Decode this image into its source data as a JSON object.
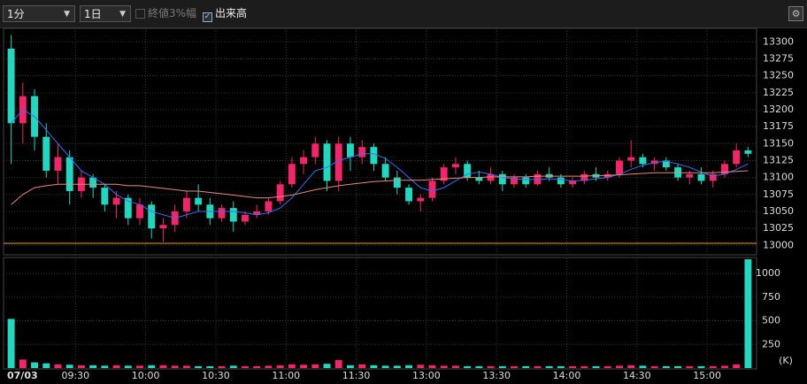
{
  "toolbar": {
    "interval": "1分",
    "period": "1日",
    "option_range": "終値3%幅",
    "option_volume": "出来高"
  },
  "chart_data": {
    "type": "candlestick",
    "date": "07/03",
    "sessions": [
      [
        "09:00",
        "11:30"
      ],
      [
        "12:30",
        "15:20"
      ]
    ],
    "x": [
      "09:00",
      "09:05",
      "09:10",
      "09:15",
      "09:20",
      "09:25",
      "09:30",
      "09:35",
      "09:40",
      "09:45",
      "09:50",
      "09:55",
      "10:00",
      "10:05",
      "10:10",
      "10:15",
      "10:20",
      "10:25",
      "10:30",
      "10:35",
      "10:40",
      "10:45",
      "10:50",
      "10:55",
      "11:00",
      "11:05",
      "11:10",
      "11:15",
      "11:20",
      "11:25",
      "12:30",
      "12:35",
      "12:40",
      "12:45",
      "12:50",
      "12:55",
      "13:00",
      "13:05",
      "13:10",
      "13:15",
      "13:20",
      "13:25",
      "13:30",
      "13:35",
      "13:40",
      "13:45",
      "13:50",
      "13:55",
      "14:00",
      "14:05",
      "14:10",
      "14:15",
      "14:20",
      "14:25",
      "14:30",
      "14:35",
      "14:40",
      "14:45",
      "14:50",
      "14:55",
      "15:00",
      "15:05",
      "15:10",
      "15:15"
    ],
    "open": [
      13290,
      13180,
      13220,
      13160,
      13110,
      13130,
      13080,
      13100,
      13085,
      13060,
      13070,
      13040,
      13060,
      13025,
      13030,
      13050,
      13070,
      13060,
      13040,
      13055,
      13035,
      13045,
      13050,
      13065,
      13090,
      13120,
      13130,
      13150,
      13095,
      13150,
      13130,
      13145,
      13120,
      13100,
      13085,
      13065,
      13070,
      13095,
      13115,
      13120,
      13100,
      13095,
      13105,
      13090,
      13100,
      13090,
      13105,
      13100,
      13090,
      13095,
      13105,
      13100,
      13105,
      13125,
      13130,
      13120,
      13125,
      13115,
      13100,
      13105,
      13095,
      13105,
      13120,
      13140
    ],
    "high": [
      13310,
      13240,
      13230,
      13180,
      13150,
      13140,
      13110,
      13105,
      13090,
      13080,
      13075,
      13070,
      13065,
      13040,
      13060,
      13080,
      13090,
      13070,
      13060,
      13065,
      13050,
      13060,
      13070,
      13095,
      13130,
      13140,
      13160,
      13155,
      13160,
      13160,
      13155,
      13150,
      13130,
      13110,
      13090,
      13075,
      13100,
      13120,
      13130,
      13125,
      13110,
      13115,
      13110,
      13105,
      13105,
      13110,
      13115,
      13105,
      13100,
      13110,
      13115,
      13110,
      13130,
      13155,
      13135,
      13130,
      13130,
      13120,
      13110,
      13115,
      13110,
      13125,
      13150,
      13145
    ],
    "low": [
      13120,
      13150,
      13140,
      13100,
      13090,
      13060,
      13070,
      13070,
      13050,
      13040,
      13030,
      13030,
      13010,
      13005,
      13020,
      13040,
      13050,
      13030,
      13035,
      13020,
      13030,
      13040,
      13045,
      13060,
      13085,
      13105,
      13120,
      13080,
      13080,
      13110,
      13120,
      13110,
      13095,
      13075,
      13060,
      13050,
      13065,
      13090,
      13105,
      13095,
      13090,
      13090,
      13080,
      13085,
      13085,
      13088,
      13095,
      13085,
      13085,
      13090,
      13095,
      13095,
      13100,
      13115,
      13115,
      13110,
      13110,
      13095,
      13090,
      13090,
      13085,
      13100,
      13115,
      13130
    ],
    "close": [
      13180,
      13220,
      13160,
      13110,
      13130,
      13080,
      13100,
      13085,
      13060,
      13070,
      13040,
      13060,
      13025,
      13030,
      13050,
      13070,
      13060,
      13040,
      13055,
      13035,
      13045,
      13050,
      13065,
      13090,
      13120,
      13130,
      13150,
      13095,
      13150,
      13130,
      13145,
      13120,
      13100,
      13085,
      13065,
      13070,
      13095,
      13115,
      13120,
      13100,
      13095,
      13105,
      13090,
      13100,
      13090,
      13105,
      13100,
      13090,
      13095,
      13105,
      13100,
      13105,
      13125,
      13130,
      13120,
      13125,
      13115,
      13100,
      13105,
      13095,
      13105,
      13120,
      13140,
      13135
    ],
    "volume": [
      520,
      90,
      60,
      50,
      40,
      35,
      30,
      30,
      25,
      30,
      25,
      25,
      30,
      30,
      25,
      25,
      20,
      20,
      20,
      25,
      20,
      20,
      25,
      30,
      40,
      35,
      40,
      45,
      85,
      30,
      40,
      30,
      25,
      25,
      30,
      35,
      30,
      25,
      25,
      20,
      20,
      20,
      20,
      20,
      20,
      20,
      20,
      20,
      20,
      20,
      20,
      20,
      25,
      30,
      25,
      20,
      20,
      20,
      20,
      20,
      20,
      25,
      40,
      1150
    ],
    "up_color": "#f0266a",
    "down_color": "#22d6c0",
    "moving_averages": [
      {
        "color": "#3a6ff0",
        "values": [
          13180,
          13200,
          13190,
          13170,
          13150,
          13130,
          13110,
          13100,
          13090,
          13075,
          13065,
          13060,
          13050,
          13045,
          13040,
          13045,
          13050,
          13050,
          13050,
          13050,
          13048,
          13045,
          13048,
          13055,
          13070,
          13090,
          13110,
          13115,
          13125,
          13130,
          13135,
          13135,
          13128,
          13115,
          13100,
          13085,
          13080,
          13085,
          13095,
          13105,
          13108,
          13105,
          13100,
          13098,
          13097,
          13097,
          13098,
          13097,
          13095,
          13096,
          13098,
          13100,
          13105,
          13112,
          13118,
          13122,
          13124,
          13120,
          13115,
          13108,
          13102,
          13105,
          13112,
          13120
        ]
      },
      {
        "color": "#e88a7a",
        "values": [
          13060,
          13075,
          13085,
          13088,
          13090,
          13090,
          13090,
          13090,
          13090,
          13090,
          13088,
          13088,
          13086,
          13084,
          13082,
          13080,
          13080,
          13078,
          13076,
          13074,
          13072,
          13070,
          13070,
          13072,
          13074,
          13078,
          13082,
          13085,
          13088,
          13090,
          13092,
          13094,
          13095,
          13096,
          13096,
          13096,
          13097,
          13098,
          13099,
          13100,
          13100,
          13101,
          13101,
          13101,
          13101,
          13102,
          13102,
          13102,
          13102,
          13102,
          13103,
          13103,
          13104,
          13105,
          13106,
          13107,
          13107,
          13107,
          13107,
          13107,
          13107,
          13108,
          13109,
          13110
        ]
      }
    ],
    "base_line": 13003,
    "base_line_color": "#e8a030",
    "xticks": [
      "09:30",
      "10:00",
      "10:30",
      "11:00",
      "11:30",
      "13:00",
      "13:30",
      "14:00",
      "14:30",
      "15:00"
    ],
    "ylim": [
      12986,
      13320
    ],
    "yticks": [
      13000,
      13025,
      13050,
      13075,
      13100,
      13125,
      13150,
      13175,
      13200,
      13225,
      13250,
      13275,
      13300
    ],
    "volume_ylim": [
      0,
      1160
    ],
    "volume_yticks": [
      250,
      500,
      750,
      1000
    ],
    "volume_unit": "(K)",
    "grid": true
  }
}
